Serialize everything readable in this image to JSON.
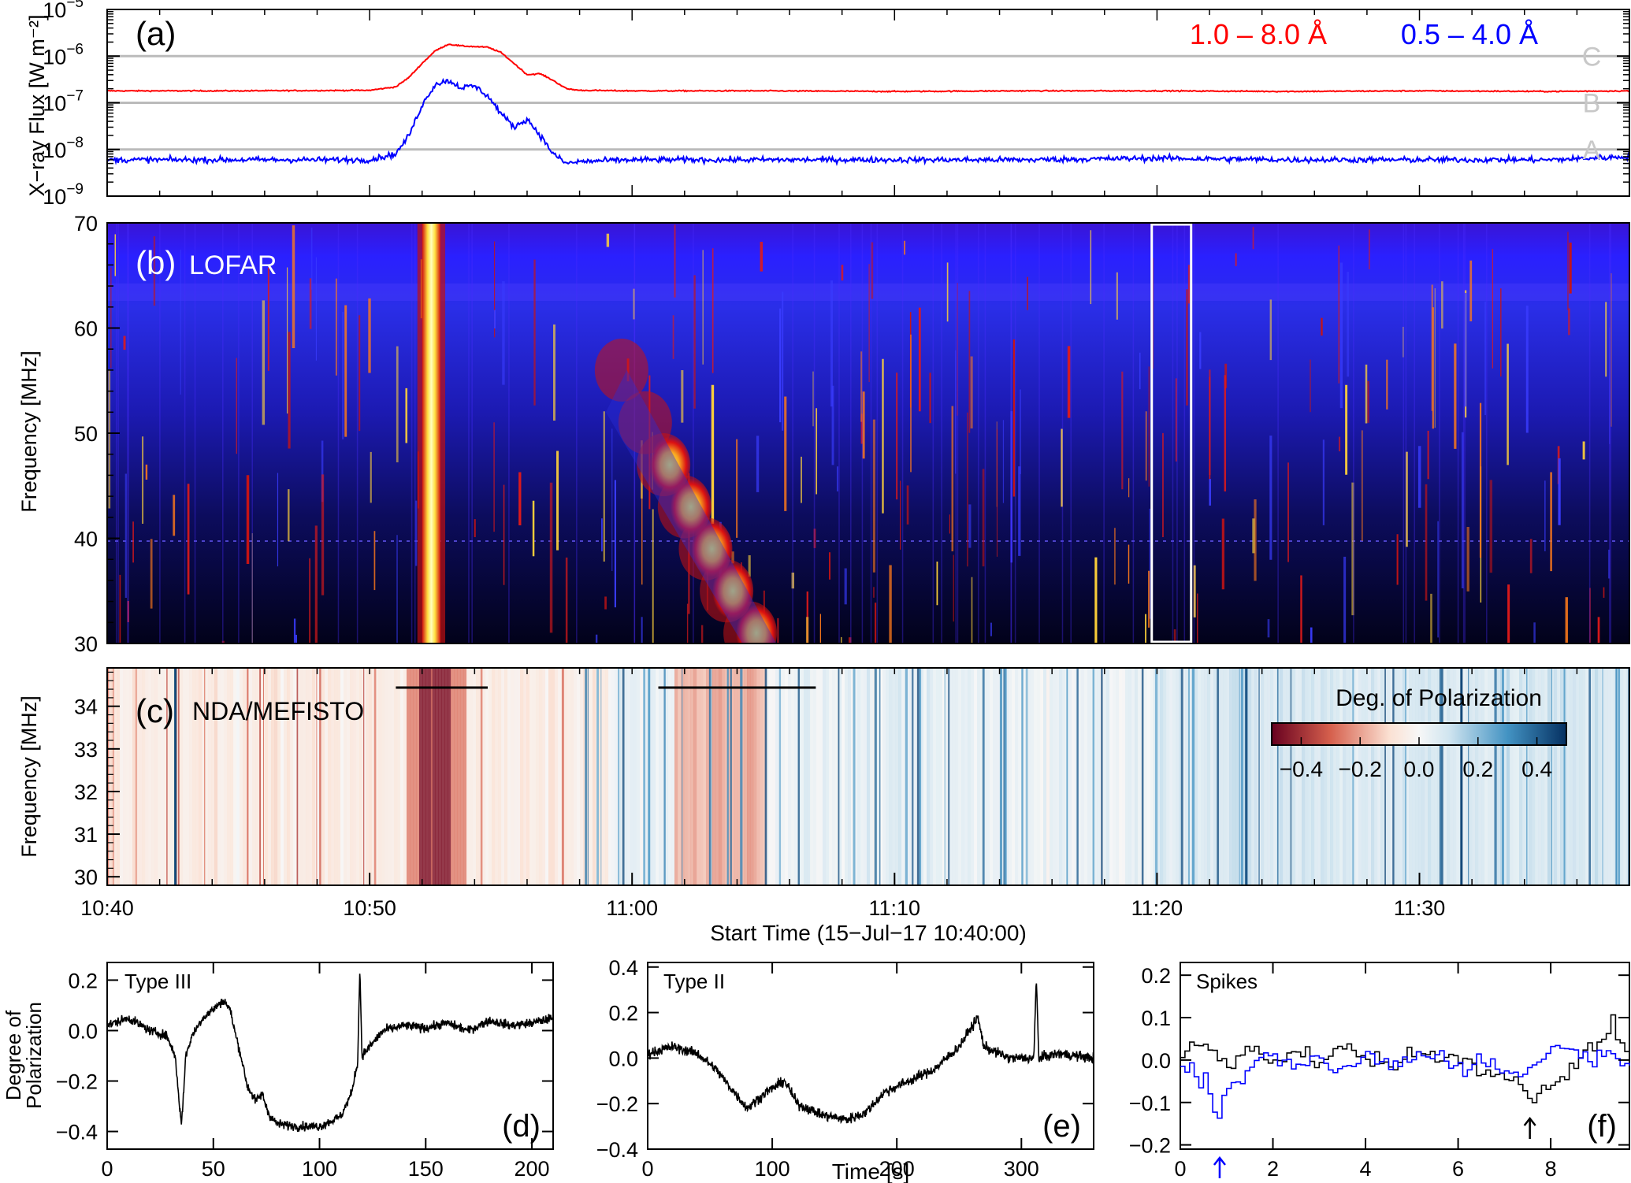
{
  "chart_data": [
    {
      "id": "a",
      "type": "line",
      "panel_label": "(a)",
      "ylabel": "X−ray Flux [W m⁻²]",
      "yscale": "log",
      "ylim": [
        1e-09,
        1e-05
      ],
      "y_ticks": [
        {
          "value": 1e-05,
          "exp": "−5"
        },
        {
          "value": 1e-06,
          "exp": "−6"
        },
        {
          "value": 1e-07,
          "exp": "−7"
        },
        {
          "value": 1e-08,
          "exp": "−8"
        },
        {
          "value": 1e-09,
          "exp": "−9"
        }
      ],
      "flare_classes": [
        {
          "label": "C",
          "value": 1e-06
        },
        {
          "label": "B",
          "value": 1e-07
        },
        {
          "label": "A",
          "value": 1e-08
        }
      ],
      "x_unit": "minutes after 10:40:00",
      "xlim": [
        0,
        58
      ],
      "series": [
        {
          "name": "1.0 – 8.0 Å",
          "color": "#ff0000",
          "x": [
            0,
            5,
            10,
            11,
            11.5,
            12,
            12.5,
            13,
            13.5,
            14,
            14.5,
            15,
            15.5,
            16,
            16.5,
            17,
            17.5,
            18,
            20,
            25,
            30,
            35,
            40,
            45,
            50,
            55,
            58
          ],
          "y": [
            1.8e-07,
            1.8e-07,
            1.85e-07,
            2.2e-07,
            3.5e-07,
            7e-07,
            1.3e-06,
            1.8e-06,
            1.65e-06,
            1.6e-06,
            1.55e-06,
            1.2e-06,
            7e-07,
            4e-07,
            4.2e-07,
            3e-07,
            2e-07,
            1.85e-07,
            1.8e-07,
            1.8e-07,
            1.75e-07,
            1.8e-07,
            1.8e-07,
            1.75e-07,
            1.8e-07,
            1.75e-07,
            1.8e-07
          ]
        },
        {
          "name": "0.5 – 4.0 Å",
          "color": "#0000ff",
          "x": [
            0,
            5,
            10,
            11,
            11.5,
            12,
            12.5,
            13,
            13.5,
            14,
            14.5,
            15,
            15.5,
            16,
            16.5,
            17,
            17.5,
            18,
            20,
            25,
            30,
            35,
            40,
            45,
            50,
            55,
            58
          ],
          "y": [
            6e-09,
            6e-09,
            6e-09,
            8e-09,
            2e-08,
            9e-08,
            2.5e-07,
            3e-07,
            2.1e-07,
            2.3e-07,
            1.4e-07,
            6e-08,
            3e-08,
            4.5e-08,
            2e-08,
            8e-09,
            5e-09,
            5.5e-09,
            6e-09,
            6e-09,
            6e-09,
            6e-09,
            6.5e-09,
            6e-09,
            6e-09,
            6e-09,
            7e-09
          ]
        }
      ]
    },
    {
      "id": "b",
      "type": "heatmap",
      "panel_label": "(b)",
      "title": "LOFAR",
      "ylabel": "Frequency [MHz]",
      "ylim": [
        30,
        70
      ],
      "y_ticks": [
        30,
        40,
        50,
        60,
        70
      ],
      "bursts": [
        {
          "t_start": 12.0,
          "t_end": 12.7,
          "f_low": 30,
          "f_high": 70,
          "level": "saturated"
        },
        {
          "t_start": 19.5,
          "t_end": 25.5,
          "f_low": 30,
          "f_high": 57,
          "level": "strong"
        }
      ],
      "highlight_window": {
        "t_start": 39.8,
        "t_end": 41.3
      }
    },
    {
      "id": "c",
      "type": "heatmap",
      "panel_label": "(c)",
      "title": "NDA/MEFISTO",
      "ylabel": "Frequency [MHz]",
      "ylim": [
        29.8,
        34.9
      ],
      "y_ticks": [
        30,
        31,
        32,
        33,
        34
      ],
      "colorbar": {
        "title": "Deg. of Polarization",
        "range": [
          -0.5,
          0.5
        ],
        "ticks": [
          "−0.4",
          "−0.2",
          "0.0",
          "0.2",
          "0.4"
        ],
        "tick_values": [
          -0.4,
          -0.2,
          0.0,
          0.2,
          0.4
        ]
      },
      "integration_bars": [
        {
          "t_start": 11.0,
          "t_end": 14.5
        },
        {
          "t_start": 21.0,
          "t_end": 27.0
        }
      ],
      "x_ticks": [
        "10:40",
        "10:50",
        "11:00",
        "11:10",
        "11:20",
        "11:30"
      ],
      "x_tick_minutes": [
        0,
        10,
        20,
        30,
        40,
        50
      ],
      "xlabel": "Start Time (15−Jul−17 10:40:00)"
    },
    {
      "id": "d",
      "type": "line",
      "panel_label": "(d)",
      "title": "Type III",
      "ylabel": "Degree of Polarization",
      "xlim": [
        0,
        210
      ],
      "ylim": [
        -0.47,
        0.27
      ],
      "x_ticks": [
        0,
        50,
        100,
        150,
        200
      ],
      "y_ticks": [
        "0.2",
        "0.0",
        "−0.2",
        "−0.4"
      ],
      "y_tick_values": [
        0.2,
        0.0,
        -0.2,
        -0.4
      ],
      "series": [
        {
          "color": "#000000",
          "x": [
            0,
            10,
            20,
            28,
            32,
            35,
            37,
            40,
            45,
            55,
            58,
            60,
            63,
            66,
            70,
            73,
            76,
            80,
            90,
            100,
            110,
            115,
            118,
            119,
            120,
            125,
            130,
            140,
            150,
            160,
            170,
            180,
            190,
            200,
            210
          ],
          "y": [
            0.02,
            0.05,
            0.0,
            -0.02,
            -0.1,
            -0.38,
            -0.1,
            -0.02,
            0.05,
            0.12,
            0.08,
            0.0,
            -0.1,
            -0.22,
            -0.28,
            -0.25,
            -0.33,
            -0.37,
            -0.38,
            -0.38,
            -0.34,
            -0.25,
            -0.12,
            0.25,
            -0.1,
            -0.05,
            0.0,
            0.02,
            0.01,
            0.03,
            0.0,
            0.04,
            0.02,
            0.03,
            0.05
          ]
        }
      ]
    },
    {
      "id": "e",
      "type": "line",
      "panel_label": "(e)",
      "title": "Type II",
      "xlabel": "Time [s]",
      "xlim": [
        0,
        358
      ],
      "ylim": [
        -0.4,
        0.42
      ],
      "x_ticks": [
        0,
        100,
        200,
        300
      ],
      "y_ticks": [
        "0.4",
        "0.2",
        "0.0",
        "−0.2",
        "−0.4"
      ],
      "y_tick_values": [
        0.4,
        0.2,
        0.0,
        -0.2,
        -0.4
      ],
      "series": [
        {
          "color": "#000000",
          "x": [
            0,
            20,
            40,
            55,
            65,
            80,
            95,
            110,
            120,
            140,
            160,
            175,
            190,
            210,
            230,
            250,
            265,
            270,
            290,
            310,
            312,
            314,
            330,
            358
          ],
          "y": [
            0.02,
            0.05,
            0.02,
            -0.05,
            -0.12,
            -0.22,
            -0.15,
            -0.1,
            -0.2,
            -0.25,
            -0.27,
            -0.24,
            -0.15,
            -0.1,
            -0.05,
            0.05,
            0.18,
            0.05,
            0.0,
            0.0,
            0.35,
            0.0,
            0.02,
            0.0
          ]
        }
      ]
    },
    {
      "id": "f",
      "type": "line",
      "panel_label": "(f)",
      "title": "Spikes",
      "xlim": [
        0,
        9.7
      ],
      "ylim": [
        -0.21,
        0.23
      ],
      "x_ticks": [
        0,
        2,
        4,
        6,
        8
      ],
      "y_ticks": [
        "0.2",
        "0.1",
        "0.0",
        "−0.1",
        "−0.2"
      ],
      "y_tick_values": [
        0.2,
        0.1,
        0.0,
        -0.1,
        -0.2
      ],
      "series": [
        {
          "color": "#000000",
          "x": [
            0,
            0.5,
            1.0,
            1.5,
            2.0,
            2.5,
            3.0,
            3.5,
            4.0,
            4.5,
            5.0,
            5.5,
            6.0,
            6.5,
            7.0,
            7.5,
            8.0,
            8.5,
            9.0,
            9.3,
            9.6
          ],
          "y": [
            0.01,
            0.04,
            -0.02,
            0.03,
            -0.01,
            0.02,
            0.0,
            0.03,
            0.01,
            -0.01,
            0.02,
            0.0,
            0.01,
            -0.02,
            -0.04,
            -0.08,
            -0.05,
            -0.02,
            0.05,
            0.08,
            0.02
          ]
        },
        {
          "color": "#0000ff",
          "x": [
            0,
            0.5,
            0.8,
            1.0,
            1.5,
            2.0,
            2.5,
            3.0,
            3.5,
            4.0,
            4.5,
            5.0,
            5.5,
            6.0,
            6.5,
            7.0,
            7.5,
            8.0,
            8.5,
            9.0,
            9.6
          ],
          "y": [
            -0.01,
            -0.05,
            -0.15,
            -0.05,
            -0.03,
            0.01,
            -0.02,
            0.0,
            -0.03,
            0.01,
            -0.01,
            0.0,
            0.02,
            -0.02,
            0.01,
            -0.04,
            -0.02,
            0.03,
            0.02,
            0.01,
            0.0
          ]
        }
      ],
      "arrows": [
        {
          "x": 0.85,
          "color": "#0000ff"
        },
        {
          "x": 7.55,
          "color": "#000000"
        }
      ]
    }
  ]
}
